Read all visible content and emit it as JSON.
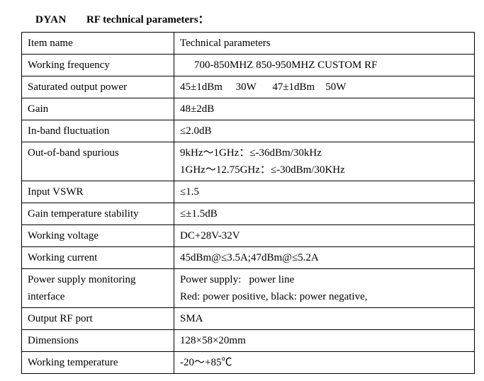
{
  "title_brand": "DYAN",
  "title_rest": "RF technical parameters：",
  "rows": [
    {
      "label": "Item name",
      "value": "Technical parameters"
    },
    {
      "label": "Working frequency",
      "value": "700-850MHZ 850-950MHZ CUSTOM RF",
      "indent": true
    },
    {
      "label": "Saturated output power",
      "value": "45±1dBm     30W      47±1dBm    50W"
    },
    {
      "label": "Gain",
      "value": "48±2dB"
    },
    {
      "label": "In-band fluctuation",
      "value": "≤2.0dB"
    },
    {
      "label": "Out-of-band spurious",
      "value": "9kHz～1GHz：≤-36dBm/30kHz\n1GHz～12.75GHz：≤-30dBm/30KHz"
    },
    {
      "label": "Input VSWR",
      "value": "≤1.5"
    },
    {
      "label": "Gain temperature stability",
      "value": "≤±1.5dB"
    },
    {
      "label": "Working voltage",
      "value": "DC+28V-32V"
    },
    {
      "label": "Working current",
      "value": "45dBm@≤3.5A;47dBm@≤5.2A"
    },
    {
      "label": "Power supply monitoring interface",
      "value": "Power supply:   power line\nRed: power positive, black: power negative,"
    },
    {
      "label": "Output RF port",
      "value": "SMA"
    },
    {
      "label": "Dimensions",
      "value": "128×58×20mm"
    },
    {
      "label": "Working temperature",
      "value": "-20～+85℃"
    }
  ]
}
